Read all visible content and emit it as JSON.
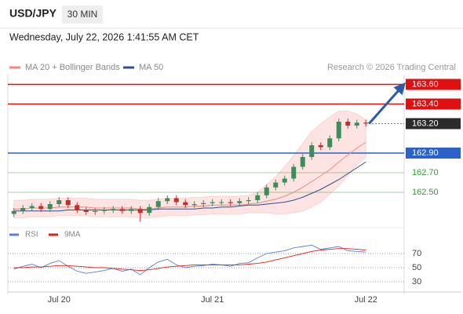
{
  "header": {
    "symbol": "USD/JPY",
    "interval": "30 MIN",
    "timestamp": "Wednesday, July 22, 2026 1:41:55 AM CET",
    "credit": "Research © 2026 Trading Central"
  },
  "chart_data": [
    {
      "type": "candlestick",
      "categories": [
        null,
        null,
        null,
        null,
        null,
        "Jul 20",
        null,
        null,
        null,
        null,
        null,
        null,
        null,
        null,
        null,
        null,
        null,
        null,
        null,
        null,
        null,
        null,
        "Jul 21",
        null,
        null,
        null,
        null,
        null,
        null,
        null,
        null,
        null,
        null,
        null,
        null,
        null,
        null,
        null,
        null,
        "Jul 22"
      ],
      "open": [
        162.28,
        162.31,
        162.34,
        162.36,
        162.33,
        162.38,
        162.42,
        162.37,
        162.32,
        162.3,
        162.31,
        162.32,
        162.33,
        162.31,
        162.33,
        162.29,
        162.35,
        162.41,
        162.44,
        162.4,
        162.37,
        162.38,
        162.39,
        162.4,
        162.4,
        162.39,
        162.41,
        162.42,
        162.47,
        162.55,
        162.6,
        162.64,
        162.76,
        162.86,
        162.98,
        162.96,
        163.05,
        163.22,
        163.18,
        163.21
      ],
      "high": [
        162.34,
        162.37,
        162.39,
        162.39,
        162.41,
        162.45,
        162.45,
        162.4,
        162.35,
        162.34,
        162.35,
        162.36,
        162.36,
        162.36,
        162.36,
        162.38,
        162.44,
        162.47,
        162.47,
        162.43,
        162.41,
        162.42,
        162.43,
        162.43,
        162.43,
        162.44,
        162.45,
        162.5,
        162.58,
        162.63,
        162.67,
        162.79,
        162.89,
        163.01,
        163.01,
        163.08,
        163.25,
        163.25,
        163.24,
        163.24
      ],
      "low": [
        162.25,
        162.28,
        162.31,
        162.3,
        162.3,
        162.35,
        162.34,
        162.29,
        162.27,
        162.27,
        162.28,
        162.29,
        162.28,
        162.28,
        162.2,
        162.26,
        162.32,
        162.38,
        162.37,
        162.34,
        162.34,
        162.35,
        162.36,
        162.37,
        162.36,
        162.36,
        162.38,
        162.39,
        162.44,
        162.52,
        162.57,
        162.61,
        162.73,
        162.83,
        162.93,
        162.93,
        163.02,
        163.15,
        163.15,
        163.17
      ],
      "close": [
        162.31,
        162.34,
        162.36,
        162.33,
        162.38,
        162.42,
        162.37,
        162.32,
        162.3,
        162.31,
        162.32,
        162.33,
        162.31,
        162.33,
        162.29,
        162.35,
        162.41,
        162.44,
        162.4,
        162.37,
        162.38,
        162.39,
        162.4,
        162.4,
        162.39,
        162.41,
        162.42,
        162.47,
        162.55,
        162.6,
        162.64,
        162.76,
        162.86,
        162.98,
        162.96,
        163.05,
        163.22,
        163.18,
        163.21,
        163.2
      ],
      "up_color": "#3c8d5a",
      "down_color": "#c0312b",
      "series": [
        {
          "name": "MA 20 + Bollinger Bands",
          "color": "#f08a80",
          "band_color": "#fde3e1",
          "values": [
            162.33,
            162.33,
            162.34,
            162.34,
            162.34,
            162.35,
            162.35,
            162.35,
            162.35,
            162.34,
            162.34,
            162.34,
            162.34,
            162.34,
            162.33,
            162.33,
            162.34,
            162.35,
            162.35,
            162.35,
            162.36,
            162.36,
            162.37,
            162.37,
            162.37,
            162.37,
            162.38,
            162.39,
            162.41,
            162.43,
            162.46,
            162.5,
            162.55,
            162.61,
            162.67,
            162.73,
            162.81,
            162.88,
            162.95,
            163.01
          ],
          "upper": [
            162.42,
            162.42,
            162.43,
            162.43,
            162.43,
            162.44,
            162.44,
            162.44,
            162.44,
            162.43,
            162.43,
            162.43,
            162.43,
            162.43,
            162.42,
            162.42,
            162.43,
            162.44,
            162.44,
            162.44,
            162.45,
            162.45,
            162.46,
            162.46,
            162.46,
            162.46,
            162.47,
            162.5,
            162.58,
            162.66,
            162.76,
            162.88,
            163.0,
            163.12,
            163.2,
            163.27,
            163.33,
            163.33,
            163.3,
            163.24
          ],
          "lower": [
            162.24,
            162.24,
            162.25,
            162.25,
            162.25,
            162.26,
            162.26,
            162.26,
            162.26,
            162.25,
            162.25,
            162.25,
            162.25,
            162.25,
            162.24,
            162.24,
            162.25,
            162.26,
            162.26,
            162.26,
            162.27,
            162.27,
            162.28,
            162.28,
            162.28,
            162.28,
            162.29,
            162.29,
            162.29,
            162.28,
            162.28,
            162.29,
            162.31,
            162.35,
            162.4,
            162.48,
            162.57,
            162.67,
            162.78,
            162.86
          ]
        },
        {
          "name": "MA 50",
          "color": "#2f4f8f",
          "values": [
            162.31,
            162.31,
            162.31,
            162.31,
            162.31,
            162.31,
            162.32,
            162.32,
            162.32,
            162.32,
            162.32,
            162.32,
            162.32,
            162.32,
            162.32,
            162.32,
            162.33,
            162.33,
            162.33,
            162.33,
            162.33,
            162.34,
            162.34,
            162.35,
            162.35,
            162.36,
            162.37,
            162.37,
            162.38,
            162.39,
            162.4,
            162.42,
            162.45,
            162.49,
            162.53,
            162.58,
            162.63,
            162.69,
            162.75,
            162.81
          ]
        }
      ],
      "ylim": [
        162.18,
        163.7
      ],
      "levels": [
        {
          "value": 163.6,
          "label": "163.60",
          "color": "#e01010",
          "kind": "box"
        },
        {
          "value": 163.4,
          "label": "163.40",
          "color": "#e01010",
          "kind": "box"
        },
        {
          "value": 162.9,
          "label": "162.90",
          "color": "#2a62c9",
          "kind": "box"
        },
        {
          "value": 162.7,
          "label": "162.70",
          "color": "#3a9a3a",
          "kind": "text"
        },
        {
          "value": 162.5,
          "label": "162.50",
          "color": "#3a9a3a",
          "kind": "text"
        }
      ],
      "last_price": {
        "value": 163.2,
        "label": "163.20",
        "color": "#2b2b2b"
      }
    },
    {
      "type": "line",
      "series": [
        {
          "name": "RSI",
          "color": "#5b7fd6",
          "values": [
            48,
            52,
            55,
            50,
            56,
            60,
            52,
            45,
            42,
            44,
            46,
            49,
            45,
            48,
            40,
            50,
            58,
            62,
            54,
            50,
            52,
            53,
            55,
            54,
            52,
            56,
            57,
            64,
            70,
            72,
            74,
            78,
            80,
            82,
            76,
            78,
            80,
            74,
            73,
            72
          ]
        },
        {
          "name": "9MA",
          "color": "#e02020",
          "values": [
            50,
            50,
            51,
            51,
            52,
            53,
            53,
            52,
            51,
            50,
            50,
            49,
            48,
            47,
            46,
            47,
            49,
            51,
            52,
            53,
            54,
            54,
            54,
            54,
            54,
            54,
            55,
            56,
            58,
            61,
            64,
            67,
            70,
            73,
            75,
            76,
            77,
            77,
            76,
            75
          ]
        }
      ],
      "ylim": [
        20,
        85
      ],
      "yticks": [
        70,
        50,
        30
      ],
      "grid": true
    }
  ]
}
